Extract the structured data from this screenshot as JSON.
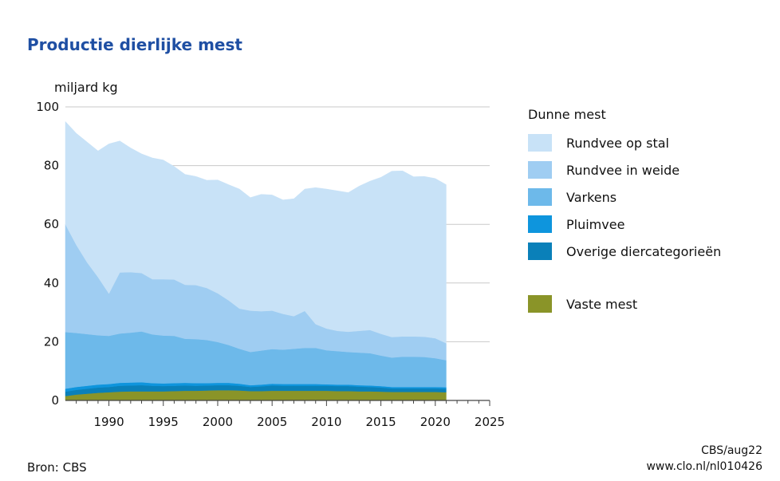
{
  "title": "Productie dierlijke mest",
  "y_unit": "miljard kg",
  "source": "Bron: CBS",
  "footer": {
    "line1": "CBS/aug22",
    "line2": "www.clo.nl/nl010426"
  },
  "legend": {
    "heading": "Dunne mest",
    "items": [
      {
        "label": "Rundvee op stal",
        "color": "#c8e2f7"
      },
      {
        "label": "Rundvee in weide",
        "color": "#9fcdf2"
      },
      {
        "label": "Varkens",
        "color": "#6db9ea"
      },
      {
        "label": "Pluimvee",
        "color": "#0e95dd"
      },
      {
        "label": "Overige diercategorieën",
        "color": "#0a80b9"
      },
      {
        "label": "Vaste mest",
        "color": "#8a9428"
      }
    ]
  },
  "chart_data": {
    "type": "area",
    "stacked": true,
    "ylabel": "miljard kg",
    "xlim": [
      1986,
      2025
    ],
    "ylim": [
      0,
      100
    ],
    "x_ticks": [
      1990,
      1995,
      2000,
      2005,
      2010,
      2015,
      2020,
      2025
    ],
    "y_ticks": [
      0,
      20,
      40,
      60,
      80,
      100
    ],
    "grid": "horizontal",
    "legend_position": "right",
    "x": [
      1986,
      1987,
      1988,
      1989,
      1990,
      1991,
      1992,
      1993,
      1994,
      1995,
      1996,
      1997,
      1998,
      1999,
      2000,
      2001,
      2002,
      2003,
      2004,
      2005,
      2006,
      2007,
      2008,
      2009,
      2010,
      2011,
      2012,
      2013,
      2014,
      2015,
      2016,
      2017,
      2018,
      2019,
      2020,
      2021
    ],
    "series": [
      {
        "name": "Vaste mest",
        "color": "#8a9428",
        "values": [
          1.5,
          2.0,
          2.3,
          2.6,
          2.8,
          3.0,
          3.1,
          3.1,
          3.1,
          3.1,
          3.2,
          3.3,
          3.3,
          3.4,
          3.5,
          3.5,
          3.4,
          3.2,
          3.2,
          3.3,
          3.3,
          3.3,
          3.3,
          3.3,
          3.3,
          3.2,
          3.2,
          3.1,
          3.1,
          3.0,
          2.9,
          2.9,
          2.9,
          2.9,
          2.9,
          2.8
        ]
      },
      {
        "name": "Overige diercategorieën",
        "color": "#0a80b9",
        "values": [
          1.5,
          1.6,
          1.7,
          1.8,
          1.8,
          2.0,
          2.0,
          2.1,
          1.9,
          1.8,
          1.8,
          1.8,
          1.7,
          1.7,
          1.7,
          1.7,
          1.6,
          1.4,
          1.6,
          1.8,
          1.7,
          1.7,
          1.7,
          1.7,
          1.7,
          1.7,
          1.7,
          1.6,
          1.5,
          1.4,
          1.2,
          1.2,
          1.2,
          1.2,
          1.2,
          1.2
        ]
      },
      {
        "name": "Pluimvee",
        "color": "#0e95dd",
        "values": [
          1.0,
          1.0,
          1.0,
          1.0,
          1.0,
          1.0,
          1.0,
          1.0,
          0.9,
          0.9,
          0.9,
          0.9,
          0.9,
          0.8,
          0.8,
          0.8,
          0.7,
          0.6,
          0.6,
          0.6,
          0.6,
          0.6,
          0.6,
          0.6,
          0.5,
          0.5,
          0.5,
          0.5,
          0.5,
          0.5,
          0.5,
          0.5,
          0.5,
          0.5,
          0.5,
          0.5
        ]
      },
      {
        "name": "Varkens",
        "color": "#6db9ea",
        "values": [
          19.3,
          18.4,
          17.6,
          16.8,
          16.4,
          16.8,
          17.0,
          17.3,
          16.6,
          16.3,
          16.1,
          15.0,
          15.0,
          14.7,
          13.9,
          12.9,
          11.9,
          11.3,
          11.6,
          11.8,
          11.7,
          12.0,
          12.3,
          12.3,
          11.6,
          11.4,
          11.1,
          11.1,
          11.0,
          10.4,
          10.0,
          10.3,
          10.3,
          10.2,
          9.8,
          9.2
        ]
      },
      {
        "name": "Rundvee in weide",
        "color": "#9fcdf2",
        "values": [
          36.7,
          30.0,
          24.4,
          19.8,
          14.4,
          20.8,
          20.6,
          19.9,
          18.8,
          19.2,
          19.2,
          18.4,
          18.4,
          17.7,
          16.6,
          15.2,
          13.7,
          14.1,
          13.4,
          13.1,
          12.2,
          11.1,
          12.6,
          8.1,
          7.4,
          6.9,
          6.9,
          7.4,
          7.9,
          7.4,
          7.0,
          6.9,
          6.9,
          6.9,
          6.8,
          5.8
        ]
      },
      {
        "name": "Rundvee op stal",
        "color": "#c8e2f7",
        "values": [
          35.0,
          38.0,
          41.0,
          43.0,
          51.0,
          44.8,
          42.3,
          40.6,
          41.3,
          40.6,
          38.5,
          37.6,
          37.0,
          36.7,
          38.6,
          39.4,
          40.7,
          38.5,
          39.8,
          39.4,
          38.8,
          40.0,
          41.5,
          46.5,
          47.5,
          47.7,
          47.4,
          49.3,
          50.7,
          53.3,
          56.5,
          56.4,
          54.4,
          54.6,
          54.4,
          54.0
        ]
      }
    ]
  }
}
